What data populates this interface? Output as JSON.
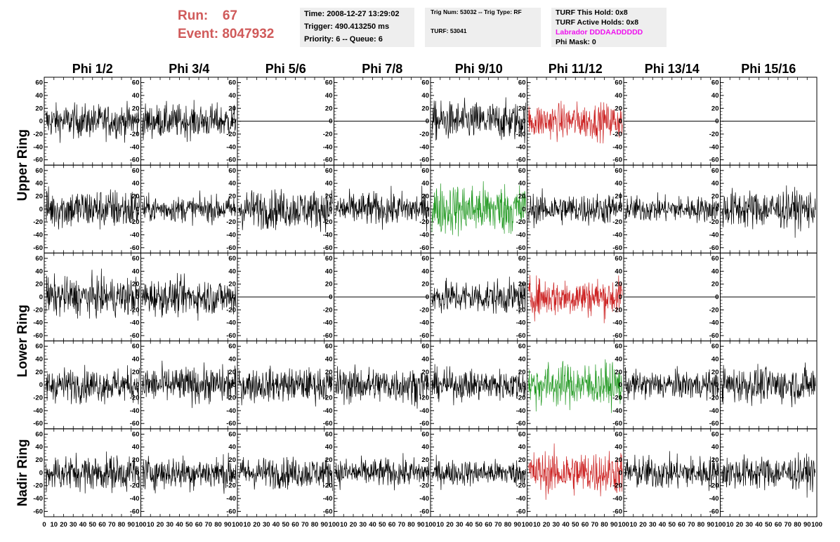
{
  "header": {
    "run_label": "Run:",
    "run_value": "67",
    "event_label": "Event:",
    "event_value": "8047932",
    "time": "Time: 2008-12-27 13:29:02",
    "trigger": "Trigger: 490.413250 ms",
    "priority": "Priority: 6 -- Queue: 6",
    "trig_num": "Trig Num: 53032 -- Trig Type: RF",
    "turf": "TURF: 53041",
    "turf_hold": "TURF This Hold: 0x8",
    "turf_active": "TURF Active Holds: 0x8",
    "labrador": "Labrador DDDAADDDDD",
    "phi_mask": "Phi Mask: 0"
  },
  "colors": {
    "header_red": "#d05a5a",
    "info_bg": "#eeeeee",
    "labrador": "#ee11ee",
    "trace_black": "#000000",
    "trace_red": "#cc2222",
    "trace_green": "#229922"
  },
  "chart_data": {
    "type": "line",
    "title": "",
    "columns": [
      "Phi 1/2",
      "Phi 3/4",
      "Phi 5/6",
      "Phi 7/8",
      "Phi 9/10",
      "Phi 11/12",
      "Phi 13/14",
      "Phi 15/16"
    ],
    "ring_labels": [
      {
        "text": "Upper Ring",
        "rows": [
          0,
          1
        ]
      },
      {
        "text": "Lower Ring",
        "rows": [
          2,
          3
        ]
      },
      {
        "text": "Nadir Ring",
        "rows": [
          4,
          4
        ]
      }
    ],
    "xlim": [
      0,
      100
    ],
    "ylim": [
      -65,
      65
    ],
    "yticks": [
      -60,
      -40,
      -20,
      0,
      20,
      40,
      60
    ],
    "xticks": [
      0,
      10,
      20,
      30,
      40,
      50,
      60,
      70,
      80,
      90,
      100
    ],
    "n_samples": 260,
    "panels": [
      [
        {
          "amp": 13,
          "color": "black"
        },
        {
          "amp": 13,
          "color": "black"
        },
        {
          "amp": 0,
          "color": "black"
        },
        {
          "amp": 0,
          "color": "black"
        },
        {
          "amp": 15,
          "color": "black"
        },
        {
          "amp": 14,
          "color": "red"
        },
        {
          "amp": 0,
          "color": "black"
        },
        {
          "amp": 0,
          "color": "black"
        }
      ],
      [
        {
          "amp": 16,
          "color": "black"
        },
        {
          "amp": 10,
          "color": "black"
        },
        {
          "amp": 15,
          "color": "black"
        },
        {
          "amp": 13,
          "color": "black"
        },
        {
          "amp": 20,
          "color": "green"
        },
        {
          "amp": 12,
          "color": "black"
        },
        {
          "amp": 10,
          "color": "black"
        },
        {
          "amp": 15,
          "color": "black"
        }
      ],
      [
        {
          "amp": 15,
          "color": "black"
        },
        {
          "amp": 14,
          "color": "black"
        },
        {
          "amp": 0,
          "color": "black"
        },
        {
          "amp": 0,
          "color": "black"
        },
        {
          "amp": 13,
          "color": "black"
        },
        {
          "amp": 15,
          "color": "red"
        },
        {
          "amp": 0,
          "color": "black"
        },
        {
          "amp": 0,
          "color": "black"
        }
      ],
      [
        {
          "amp": 13,
          "color": "black"
        },
        {
          "amp": 14,
          "color": "black"
        },
        {
          "amp": 13,
          "color": "black"
        },
        {
          "amp": 14,
          "color": "black"
        },
        {
          "amp": 12,
          "color": "black"
        },
        {
          "amp": 17,
          "color": "green"
        },
        {
          "amp": 11,
          "color": "black"
        },
        {
          "amp": 14,
          "color": "black"
        }
      ],
      [
        {
          "amp": 14,
          "color": "black"
        },
        {
          "amp": 13,
          "color": "black"
        },
        {
          "amp": 12,
          "color": "black"
        },
        {
          "amp": 11,
          "color": "black"
        },
        {
          "amp": 10,
          "color": "black"
        },
        {
          "amp": 17,
          "color": "red"
        },
        {
          "amp": 13,
          "color": "black"
        },
        {
          "amp": 13,
          "color": "black"
        }
      ]
    ]
  }
}
